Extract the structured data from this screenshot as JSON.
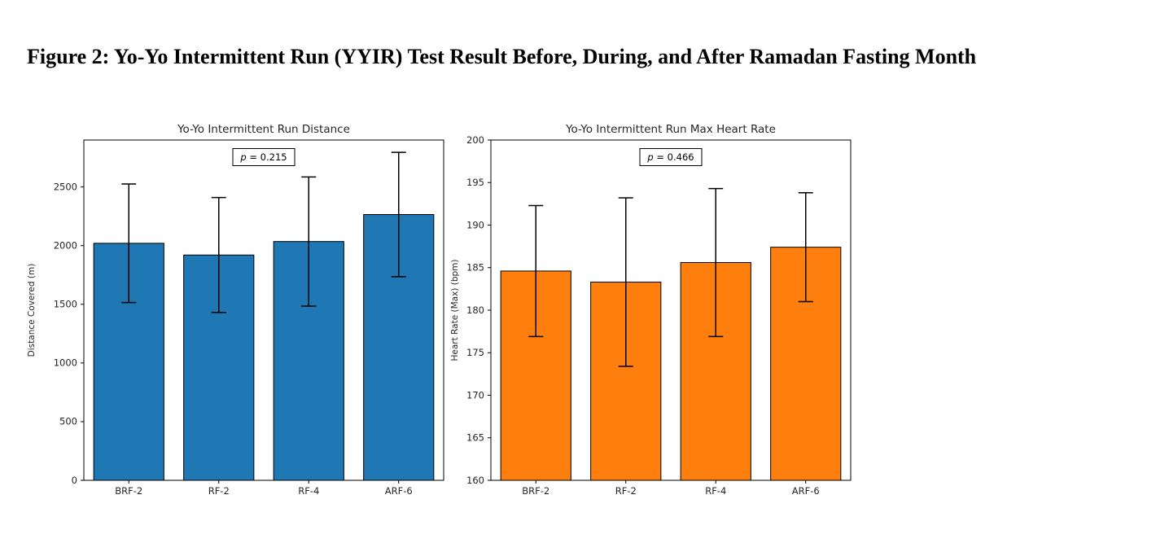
{
  "figure_title": "Figure 2: Yo-Yo Intermittent Run (YYIR) Test Result Before, During, and After Ramadan Fasting Month",
  "chart_data": [
    {
      "type": "bar",
      "title": "Yo-Yo Intermittent Run Distance",
      "ylabel": "Distance Covered (m)",
      "categories": [
        "BRF-2",
        "RF-2",
        "RF-4",
        "ARF-6"
      ],
      "values": [
        2020,
        1920,
        2035,
        2265
      ],
      "errors": [
        505,
        490,
        550,
        530
      ],
      "ylim": [
        0,
        2900
      ],
      "yticks": [
        0,
        500,
        1000,
        1500,
        2000,
        2500
      ],
      "annotation": "p = 0.215",
      "bar_color": "#1f77b4",
      "grid": false,
      "legend": "none"
    },
    {
      "type": "bar",
      "title": "Yo-Yo Intermittent Run Max Heart Rate",
      "ylabel": "Heart Rate (Max) (bpm)",
      "categories": [
        "BRF-2",
        "RF-2",
        "RF-4",
        "ARF-6"
      ],
      "values": [
        184.6,
        183.3,
        185.6,
        187.4
      ],
      "errors": [
        7.7,
        9.9,
        8.7,
        6.4
      ],
      "ylim": [
        160,
        200
      ],
      "yticks": [
        160,
        165,
        170,
        175,
        180,
        185,
        190,
        195,
        200
      ],
      "annotation": "p = 0.466",
      "bar_color": "#ff7f0e",
      "grid": false,
      "legend": "none"
    }
  ]
}
